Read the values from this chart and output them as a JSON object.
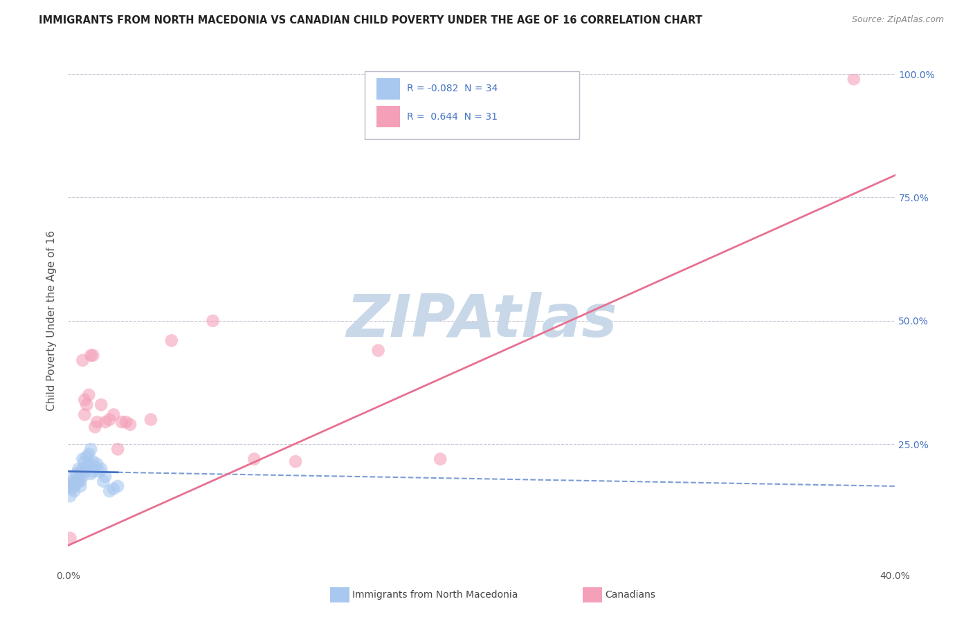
{
  "title": "IMMIGRANTS FROM NORTH MACEDONIA VS CANADIAN CHILD POVERTY UNDER THE AGE OF 16 CORRELATION CHART",
  "source": "Source: ZipAtlas.com",
  "ylabel": "Child Poverty Under the Age of 16",
  "xlim": [
    0.0,
    0.4
  ],
  "ylim": [
    0.0,
    1.0
  ],
  "color_blue": "#A8C8F0",
  "color_pink": "#F4A0B8",
  "color_blue_line": "#4472C4",
  "color_pink_line": "#E87090",
  "color_grid": "#C8C8D8",
  "watermark": "ZIPAtlas",
  "watermark_color": "#C8D8E8",
  "blue_scatter_x": [
    0.001,
    0.001,
    0.002,
    0.002,
    0.003,
    0.003,
    0.004,
    0.004,
    0.005,
    0.005,
    0.006,
    0.006,
    0.007,
    0.007,
    0.007,
    0.008,
    0.008,
    0.009,
    0.009,
    0.01,
    0.01,
    0.011,
    0.011,
    0.012,
    0.012,
    0.013,
    0.014,
    0.015,
    0.016,
    0.017,
    0.018,
    0.02,
    0.022,
    0.024
  ],
  "blue_scatter_y": [
    0.165,
    0.145,
    0.175,
    0.16,
    0.185,
    0.155,
    0.19,
    0.17,
    0.2,
    0.18,
    0.175,
    0.165,
    0.22,
    0.2,
    0.185,
    0.215,
    0.195,
    0.225,
    0.205,
    0.23,
    0.21,
    0.24,
    0.19,
    0.215,
    0.195,
    0.205,
    0.21,
    0.195,
    0.2,
    0.175,
    0.185,
    0.155,
    0.16,
    0.165
  ],
  "pink_scatter_x": [
    0.001,
    0.002,
    0.003,
    0.004,
    0.005,
    0.006,
    0.007,
    0.008,
    0.008,
    0.009,
    0.01,
    0.011,
    0.012,
    0.013,
    0.014,
    0.016,
    0.018,
    0.02,
    0.022,
    0.024,
    0.026,
    0.028,
    0.03,
    0.04,
    0.05,
    0.07,
    0.09,
    0.11,
    0.15,
    0.18,
    0.38
  ],
  "pink_scatter_y": [
    0.06,
    0.17,
    0.165,
    0.175,
    0.175,
    0.195,
    0.42,
    0.34,
    0.31,
    0.33,
    0.35,
    0.43,
    0.43,
    0.285,
    0.295,
    0.33,
    0.295,
    0.3,
    0.31,
    0.24,
    0.295,
    0.295,
    0.29,
    0.3,
    0.46,
    0.5,
    0.22,
    0.215,
    0.44,
    0.22,
    0.99
  ],
  "blue_line_x0": 0.0,
  "blue_line_x1": 0.4,
  "blue_line_y0": 0.195,
  "blue_line_y1": 0.165,
  "pink_line_x0": 0.0,
  "pink_line_x1": 0.4,
  "pink_line_y0": 0.045,
  "pink_line_y1": 0.795
}
